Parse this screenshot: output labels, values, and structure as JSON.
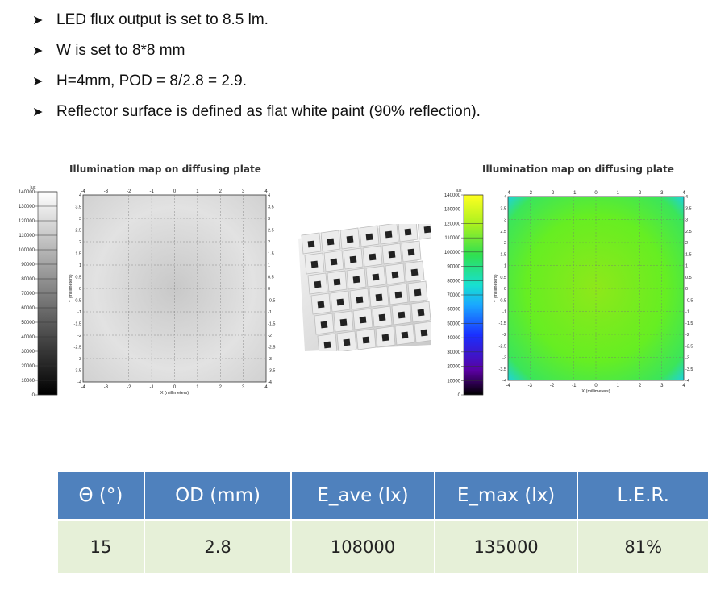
{
  "bullets": [
    "LED flux output is set to 8.5 lm.",
    "W is set to 8*8 mm",
    "H=4mm, POD = 8/2.8 = 2.9.",
    "Reflector surface is defined as flat white paint (90% reflection)."
  ],
  "bullet_icon": "arrowhead-bullet-icon",
  "maps": [
    {
      "title": "Illumination map on diffusing plate",
      "colorbar_unit": "lux",
      "colorbar_ticks": [
        "140000",
        "130000",
        "120000",
        "110000",
        "100000",
        "90000",
        "80000",
        "70000",
        "60000",
        "50000",
        "40000",
        "30000",
        "20000",
        "10000",
        "0"
      ],
      "colormap": "grayscale",
      "x_ticks": [
        "-4",
        "-3",
        "-2",
        "-1",
        "0",
        "1",
        "2",
        "3",
        "4"
      ],
      "y_ticks": [
        "4",
        "3.5",
        "3",
        "2.5",
        "2",
        "1.5",
        "1",
        "0.5",
        "0",
        "-0.5",
        "-1",
        "-1.5",
        "-2",
        "-2.5",
        "-3",
        "-3.5",
        "-4"
      ],
      "xlabel": "X (millimeters)",
      "ylabel": "Y (millimeters)"
    },
    {
      "title": "Illumination map on diffusing plate",
      "colorbar_unit": "lux",
      "colorbar_ticks": [
        "140000",
        "130000",
        "120000",
        "110000",
        "100000",
        "90000",
        "80000",
        "70000",
        "60000",
        "50000",
        "40000",
        "30000",
        "20000",
        "10000",
        "0"
      ],
      "colormap": "false-color",
      "x_ticks": [
        "-4",
        "-3",
        "-2",
        "-1",
        "0",
        "1",
        "2",
        "3",
        "4"
      ],
      "y_ticks": [
        "4",
        "3.5",
        "3",
        "2.5",
        "2",
        "1.5",
        "1",
        "0.5",
        "0",
        "-0.5",
        "-1",
        "-1.5",
        "-2",
        "-2.5",
        "-3",
        "-3.5",
        "-4"
      ],
      "xlabel": "X (millimeters)",
      "ylabel": "Y (millimeters)"
    }
  ],
  "photo_icon": "reflector-grid-render-icon",
  "table": {
    "headers": [
      "Θ (°)",
      "OD (mm)",
      "E_ave (lx)",
      "E_max (lx)",
      "L.E.R."
    ],
    "rows": [
      [
        "15",
        "2.8",
        "108000",
        "135000",
        "81%"
      ]
    ]
  },
  "colors": {
    "header_bg": "#4f81bd",
    "row_bg": "#e6f0d8",
    "map_green": "#66ee22",
    "map_blue": "#1ad0ee"
  }
}
